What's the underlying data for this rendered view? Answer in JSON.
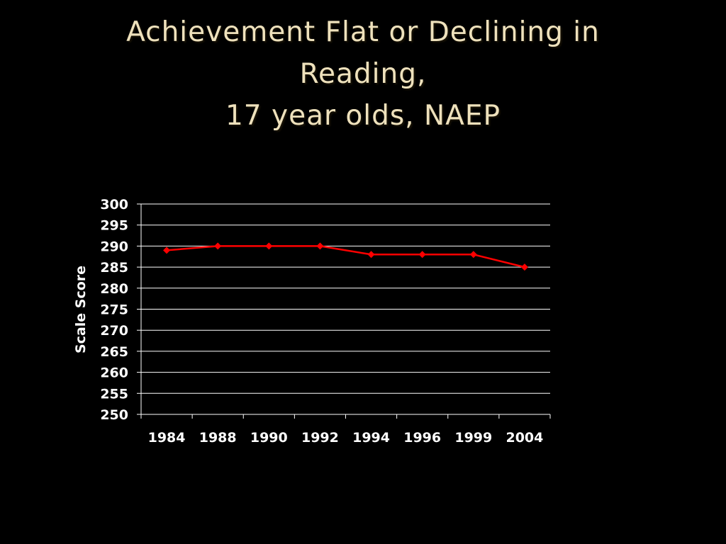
{
  "slide": {
    "title_lines": [
      "Achievement Flat or Declining in",
      "Reading,",
      "17 year olds, NAEP"
    ]
  },
  "chart_data": {
    "type": "line",
    "title": "Achievement Flat or Declining in Reading, 17 year olds, NAEP",
    "xlabel": "",
    "ylabel": "Scale Score",
    "categories": [
      "1984",
      "1988",
      "1990",
      "1992",
      "1994",
      "1996",
      "1999",
      "2004"
    ],
    "series": [
      {
        "values": [
          289,
          290,
          290,
          290,
          288,
          288,
          288,
          285
        ],
        "color": "#ff0000"
      }
    ],
    "ylim": [
      250,
      300
    ],
    "yticks": [
      300,
      295,
      290,
      285,
      280,
      275,
      270,
      265,
      260,
      255,
      250
    ],
    "grid": "horizontal",
    "legend": "none",
    "background": "#000000",
    "text_color": "#ffffff",
    "title_color": "#eee1bc",
    "gridline_color": "#ffffff"
  }
}
